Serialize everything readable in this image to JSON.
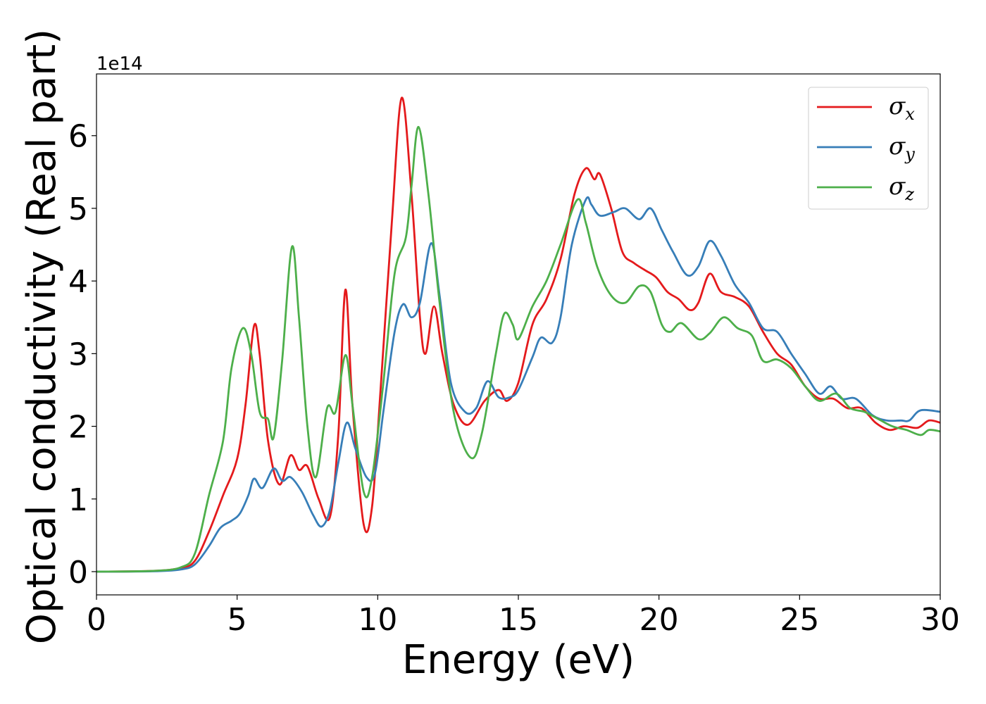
{
  "chart_data": {
    "type": "line",
    "xlabel": "Energy (eV)",
    "ylabel": "Optical conductivity (Real part)",
    "y_offset_label": "1e14",
    "xlim": [
      0,
      30
    ],
    "ylim": [
      -0.32,
      6.85
    ],
    "xticks": [
      0,
      5,
      10,
      15,
      20,
      25,
      30
    ],
    "yticks": [
      0,
      1,
      2,
      3,
      4,
      5,
      6
    ],
    "grid": false,
    "legend_position": "top-right",
    "series": [
      {
        "name": "σx",
        "symbol": "σ",
        "subscript": "x",
        "color": "#e41a1c",
        "points": [
          [
            0,
            0
          ],
          [
            2,
            0.01
          ],
          [
            3,
            0.05
          ],
          [
            3.5,
            0.15
          ],
          [
            4,
            0.55
          ],
          [
            4.5,
            1.05
          ],
          [
            5,
            1.55
          ],
          [
            5.3,
            2.3
          ],
          [
            5.6,
            3.38
          ],
          [
            5.8,
            3.0
          ],
          [
            6.1,
            1.8
          ],
          [
            6.5,
            1.2
          ],
          [
            6.9,
            1.6
          ],
          [
            7.2,
            1.4
          ],
          [
            7.5,
            1.45
          ],
          [
            7.9,
            1.0
          ],
          [
            8.3,
            0.75
          ],
          [
            8.6,
            1.9
          ],
          [
            8.85,
            3.88
          ],
          [
            9.1,
            2.3
          ],
          [
            9.5,
            0.65
          ],
          [
            9.8,
            0.9
          ],
          [
            10.1,
            2.5
          ],
          [
            10.5,
            4.8
          ],
          [
            10.85,
            6.52
          ],
          [
            11.2,
            5.2
          ],
          [
            11.5,
            3.5
          ],
          [
            11.7,
            3.0
          ],
          [
            12.0,
            3.65
          ],
          [
            12.3,
            3.0
          ],
          [
            12.7,
            2.3
          ],
          [
            13.2,
            2.02
          ],
          [
            13.8,
            2.35
          ],
          [
            14.3,
            2.5
          ],
          [
            14.6,
            2.35
          ],
          [
            15.0,
            2.6
          ],
          [
            15.5,
            3.4
          ],
          [
            16.0,
            3.75
          ],
          [
            16.5,
            4.3
          ],
          [
            17.0,
            5.2
          ],
          [
            17.4,
            5.55
          ],
          [
            17.7,
            5.4
          ],
          [
            17.9,
            5.47
          ],
          [
            18.3,
            5.0
          ],
          [
            18.7,
            4.4
          ],
          [
            19.1,
            4.25
          ],
          [
            19.5,
            4.15
          ],
          [
            19.9,
            4.05
          ],
          [
            20.3,
            3.85
          ],
          [
            20.7,
            3.75
          ],
          [
            21.1,
            3.6
          ],
          [
            21.4,
            3.7
          ],
          [
            21.8,
            4.1
          ],
          [
            22.2,
            3.85
          ],
          [
            22.7,
            3.78
          ],
          [
            23.2,
            3.65
          ],
          [
            23.7,
            3.3
          ],
          [
            24.2,
            3.0
          ],
          [
            24.7,
            2.85
          ],
          [
            25.2,
            2.55
          ],
          [
            25.7,
            2.38
          ],
          [
            26.2,
            2.38
          ],
          [
            26.7,
            2.25
          ],
          [
            27.2,
            2.25
          ],
          [
            27.7,
            2.05
          ],
          [
            28.2,
            1.95
          ],
          [
            28.7,
            2.0
          ],
          [
            29.2,
            1.98
          ],
          [
            29.6,
            2.08
          ],
          [
            30,
            2.05
          ]
        ]
      },
      {
        "name": "σy",
        "symbol": "σ",
        "subscript": "y",
        "color": "#377eb8",
        "points": [
          [
            0,
            0
          ],
          [
            2,
            0.005
          ],
          [
            3,
            0.03
          ],
          [
            3.5,
            0.1
          ],
          [
            4,
            0.35
          ],
          [
            4.4,
            0.6
          ],
          [
            4.8,
            0.7
          ],
          [
            5.1,
            0.8
          ],
          [
            5.4,
            1.05
          ],
          [
            5.6,
            1.28
          ],
          [
            5.9,
            1.15
          ],
          [
            6.3,
            1.42
          ],
          [
            6.6,
            1.25
          ],
          [
            6.9,
            1.3
          ],
          [
            7.3,
            1.1
          ],
          [
            7.7,
            0.78
          ],
          [
            8.0,
            0.62
          ],
          [
            8.3,
            0.85
          ],
          [
            8.6,
            1.5
          ],
          [
            8.9,
            2.05
          ],
          [
            9.2,
            1.7
          ],
          [
            9.6,
            1.3
          ],
          [
            9.9,
            1.35
          ],
          [
            10.2,
            2.2
          ],
          [
            10.6,
            3.3
          ],
          [
            10.9,
            3.68
          ],
          [
            11.2,
            3.5
          ],
          [
            11.5,
            3.7
          ],
          [
            11.9,
            4.52
          ],
          [
            12.2,
            3.8
          ],
          [
            12.6,
            2.6
          ],
          [
            13.1,
            2.2
          ],
          [
            13.5,
            2.25
          ],
          [
            13.9,
            2.62
          ],
          [
            14.3,
            2.4
          ],
          [
            14.7,
            2.4
          ],
          [
            15.0,
            2.5
          ],
          [
            15.5,
            2.95
          ],
          [
            15.8,
            3.22
          ],
          [
            16.2,
            3.15
          ],
          [
            16.5,
            3.5
          ],
          [
            16.9,
            4.5
          ],
          [
            17.4,
            5.12
          ],
          [
            17.6,
            5.05
          ],
          [
            17.9,
            4.9
          ],
          [
            18.4,
            4.95
          ],
          [
            18.8,
            5.0
          ],
          [
            19.3,
            4.85
          ],
          [
            19.7,
            5.0
          ],
          [
            20.1,
            4.7
          ],
          [
            20.5,
            4.4
          ],
          [
            21.0,
            4.08
          ],
          [
            21.4,
            4.2
          ],
          [
            21.8,
            4.55
          ],
          [
            22.2,
            4.35
          ],
          [
            22.7,
            3.95
          ],
          [
            23.2,
            3.7
          ],
          [
            23.7,
            3.35
          ],
          [
            24.2,
            3.3
          ],
          [
            24.7,
            3.0
          ],
          [
            25.2,
            2.72
          ],
          [
            25.7,
            2.45
          ],
          [
            26.1,
            2.55
          ],
          [
            26.5,
            2.38
          ],
          [
            27.0,
            2.38
          ],
          [
            27.6,
            2.15
          ],
          [
            28.1,
            2.08
          ],
          [
            28.6,
            2.08
          ],
          [
            28.9,
            2.08
          ],
          [
            29.3,
            2.22
          ],
          [
            30,
            2.2
          ]
        ]
      },
      {
        "name": "σz",
        "symbol": "σ",
        "subscript": "z",
        "color": "#4daf4a",
        "points": [
          [
            0,
            0
          ],
          [
            2,
            0.01
          ],
          [
            3,
            0.06
          ],
          [
            3.5,
            0.25
          ],
          [
            4,
            1.05
          ],
          [
            4.5,
            1.8
          ],
          [
            4.8,
            2.8
          ],
          [
            5.2,
            3.35
          ],
          [
            5.5,
            3.0
          ],
          [
            5.8,
            2.2
          ],
          [
            6.1,
            2.1
          ],
          [
            6.3,
            1.85
          ],
          [
            6.6,
            2.9
          ],
          [
            6.95,
            4.47
          ],
          [
            7.2,
            3.5
          ],
          [
            7.5,
            2.0
          ],
          [
            7.8,
            1.3
          ],
          [
            8.2,
            2.25
          ],
          [
            8.5,
            2.2
          ],
          [
            8.85,
            2.98
          ],
          [
            9.1,
            2.3
          ],
          [
            9.5,
            1.1
          ],
          [
            9.8,
            1.3
          ],
          [
            10.2,
            2.6
          ],
          [
            10.6,
            4.1
          ],
          [
            11.0,
            4.6
          ],
          [
            11.2,
            5.3
          ],
          [
            11.45,
            6.12
          ],
          [
            11.8,
            5.2
          ],
          [
            12.2,
            3.7
          ],
          [
            12.7,
            2.2
          ],
          [
            13.3,
            1.57
          ],
          [
            13.7,
            1.9
          ],
          [
            14.2,
            3.0
          ],
          [
            14.5,
            3.55
          ],
          [
            14.8,
            3.4
          ],
          [
            15.0,
            3.2
          ],
          [
            15.5,
            3.65
          ],
          [
            16.0,
            4.0
          ],
          [
            16.5,
            4.5
          ],
          [
            17.1,
            5.12
          ],
          [
            17.4,
            4.8
          ],
          [
            17.8,
            4.2
          ],
          [
            18.3,
            3.8
          ],
          [
            18.8,
            3.7
          ],
          [
            19.3,
            3.93
          ],
          [
            19.7,
            3.85
          ],
          [
            20.1,
            3.4
          ],
          [
            20.4,
            3.3
          ],
          [
            20.8,
            3.42
          ],
          [
            21.4,
            3.2
          ],
          [
            21.8,
            3.28
          ],
          [
            22.3,
            3.5
          ],
          [
            22.8,
            3.35
          ],
          [
            23.3,
            3.25
          ],
          [
            23.7,
            2.9
          ],
          [
            24.2,
            2.92
          ],
          [
            24.7,
            2.8
          ],
          [
            25.2,
            2.55
          ],
          [
            25.7,
            2.35
          ],
          [
            26.3,
            2.45
          ],
          [
            26.8,
            2.25
          ],
          [
            27.3,
            2.2
          ],
          [
            27.8,
            2.1
          ],
          [
            28.3,
            2.0
          ],
          [
            28.8,
            1.95
          ],
          [
            29.3,
            1.88
          ],
          [
            29.6,
            1.95
          ],
          [
            30,
            1.93
          ]
        ]
      }
    ]
  }
}
